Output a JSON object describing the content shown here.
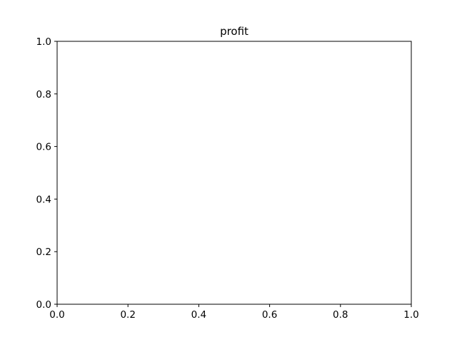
{
  "chart_data": {
    "type": "line",
    "title": "profit",
    "xlabel": "",
    "ylabel": "",
    "xlim": [
      0.0,
      1.0
    ],
    "ylim": [
      0.0,
      1.0
    ],
    "x_ticks": [
      "0.0",
      "0.2",
      "0.4",
      "0.6",
      "0.8",
      "1.0"
    ],
    "y_ticks": [
      "0.0",
      "0.2",
      "0.4",
      "0.6",
      "0.8",
      "1.0"
    ],
    "grid": false,
    "series": []
  }
}
